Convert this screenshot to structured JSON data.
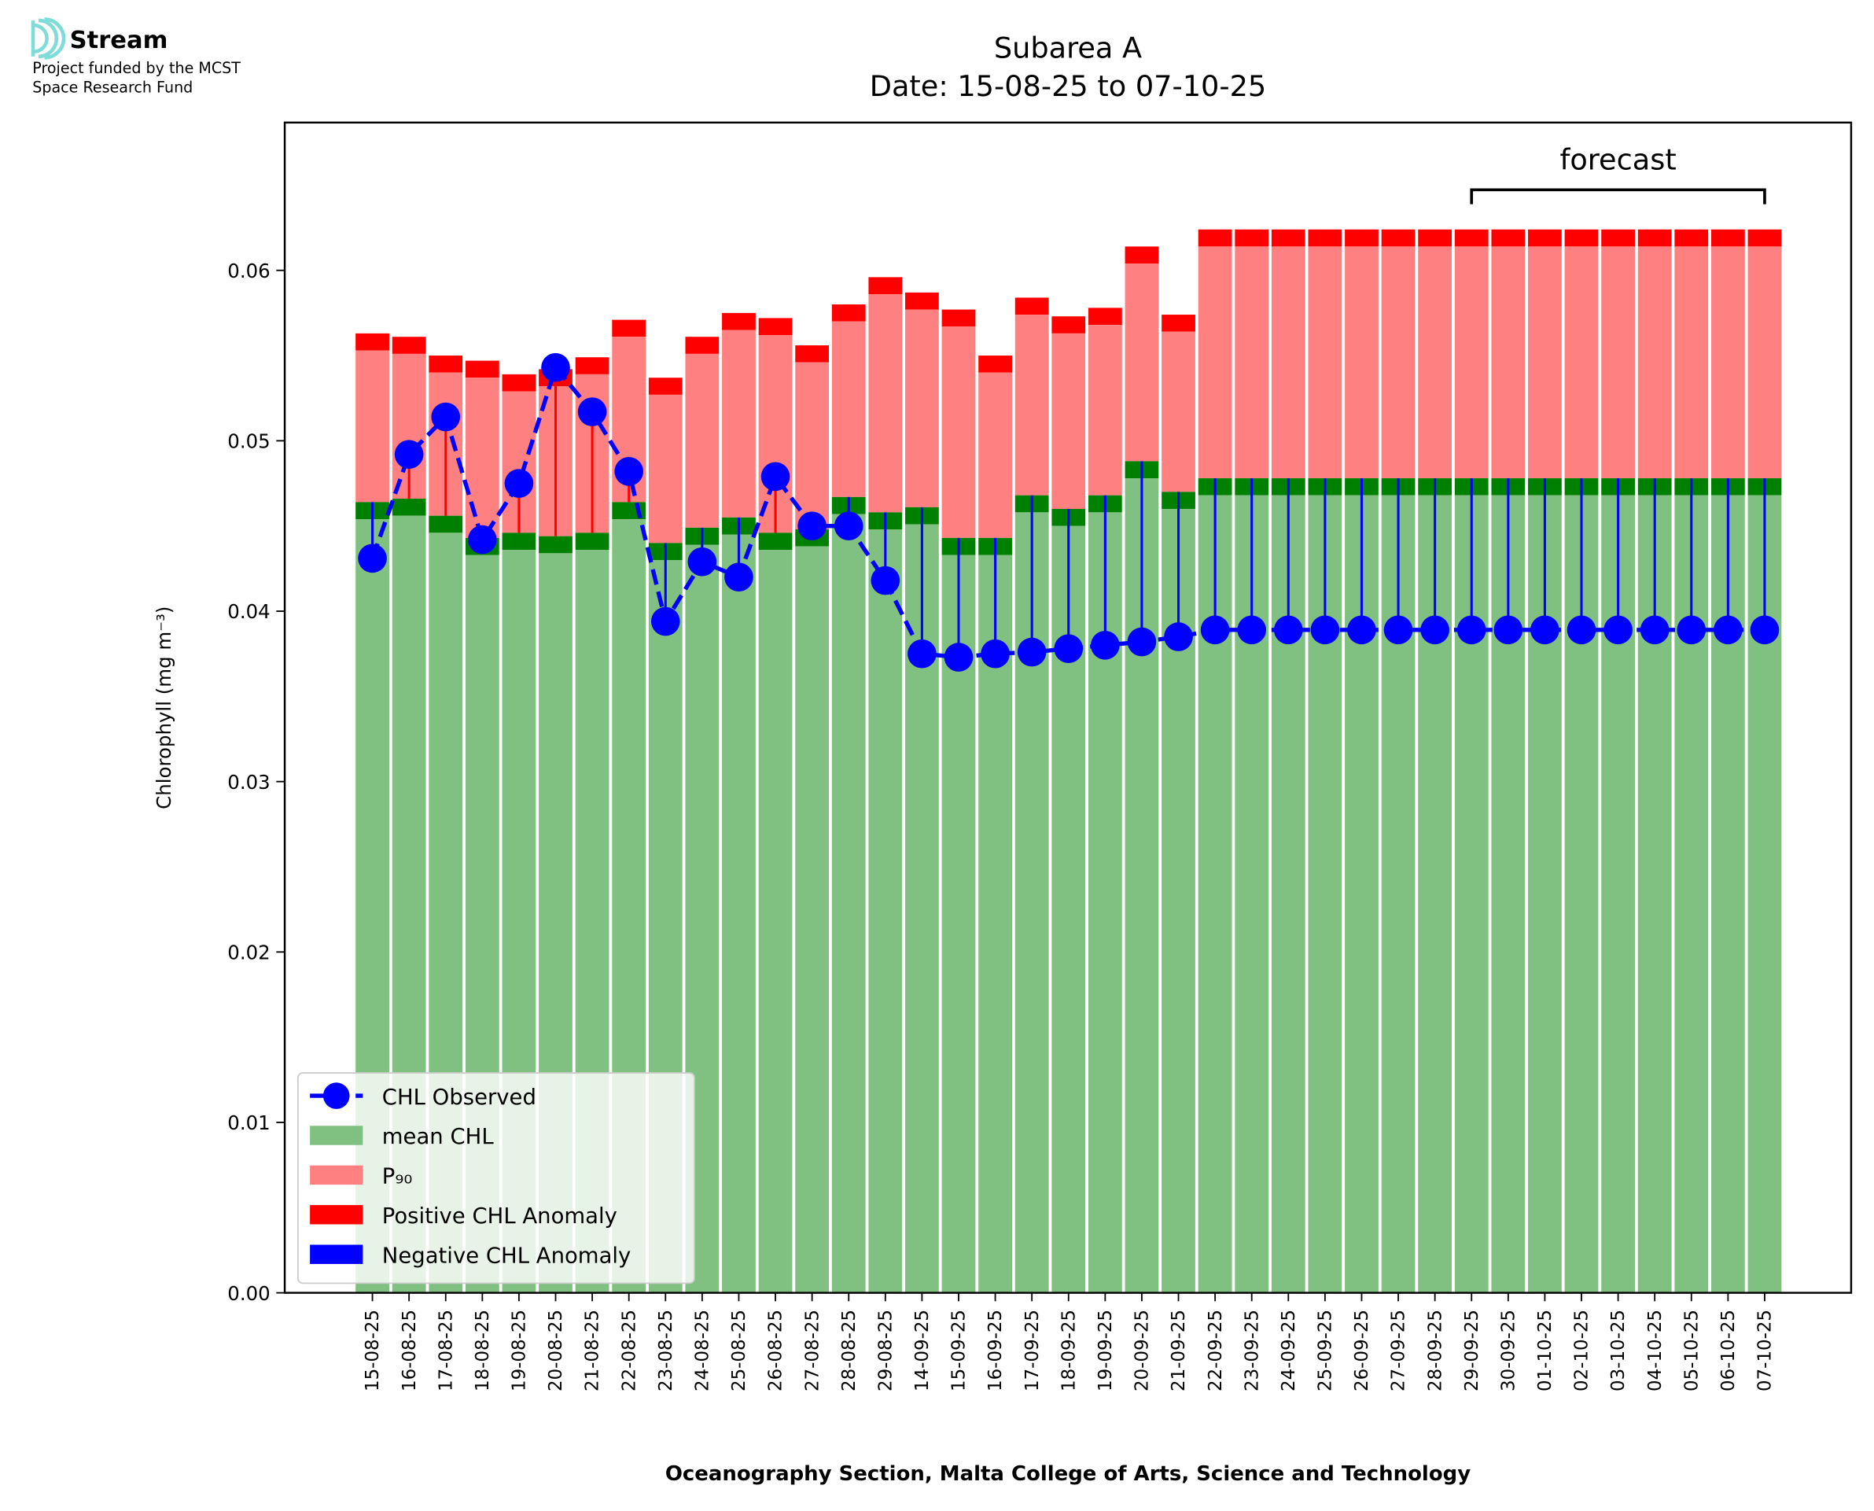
{
  "logo": {
    "name": "Stream",
    "line1": "Project funded by the MCST",
    "line2": "Space Research Fund",
    "color": "#7fdcd6"
  },
  "chart_data": {
    "type": "bar",
    "title": "Subarea A",
    "subtitle": "Date: 15-08-25 to 07-10-25",
    "xlabel": "Oceanography Section, Malta College of Arts, Science and Technology",
    "ylabel": "Chlorophyll (mg m⁻³)",
    "ylim": [
      0,
      0.0685
    ],
    "yticks": [
      "0.00",
      "0.01",
      "0.02",
      "0.03",
      "0.04",
      "0.05",
      "0.06"
    ],
    "grid": false,
    "legend_placement": "lower-left",
    "annotation": {
      "text": "forecast",
      "from": "29-09-25",
      "to": "07-10-25"
    },
    "colors": {
      "mean": "#80c080",
      "mean_band": "#008000",
      "p90": "#ff8080",
      "p90_band": "#ff0000",
      "observed": "#0000ff",
      "negative": "#0000ff",
      "positive": "#ff0000"
    },
    "legend": [
      "CHL Observed",
      "mean CHL",
      "P₉₀",
      "Positive CHL Anomaly",
      "Negative CHL Anomaly"
    ],
    "categories": [
      "15-08-25",
      "16-08-25",
      "17-08-25",
      "18-08-25",
      "19-08-25",
      "20-08-25",
      "21-08-25",
      "22-08-25",
      "23-08-25",
      "24-08-25",
      "25-08-25",
      "26-08-25",
      "27-08-25",
      "28-08-25",
      "29-08-25",
      "14-09-25",
      "15-09-25",
      "16-09-25",
      "17-09-25",
      "18-09-25",
      "19-09-25",
      "20-09-25",
      "21-09-25",
      "22-09-25",
      "23-09-25",
      "24-09-25",
      "25-09-25",
      "26-09-25",
      "27-09-25",
      "28-09-25",
      "29-09-25",
      "30-09-25",
      "01-10-25",
      "02-10-25",
      "03-10-25",
      "04-10-25",
      "05-10-25",
      "06-10-25",
      "07-10-25"
    ],
    "series": [
      {
        "name": "mean CHL",
        "values": [
          0.0464,
          0.0466,
          0.0456,
          0.0443,
          0.0446,
          0.0444,
          0.0446,
          0.0464,
          0.044,
          0.0449,
          0.0455,
          0.0446,
          0.0448,
          0.0467,
          0.0458,
          0.0461,
          0.0443,
          0.0443,
          0.0468,
          0.046,
          0.0468,
          0.0488,
          0.047,
          0.0478,
          0.0478,
          0.0478,
          0.0478,
          0.0478,
          0.0478,
          0.0478,
          0.0478,
          0.0478,
          0.0478,
          0.0478,
          0.0478,
          0.0478,
          0.0478,
          0.0478,
          0.0478
        ]
      },
      {
        "name": "P₉₀",
        "values": [
          0.0553,
          0.0551,
          0.054,
          0.0537,
          0.0529,
          0.0532,
          0.0539,
          0.0561,
          0.0527,
          0.0551,
          0.0565,
          0.0562,
          0.0546,
          0.057,
          0.0586,
          0.0577,
          0.0567,
          0.054,
          0.0574,
          0.0563,
          0.0568,
          0.0604,
          0.0564,
          0.0614,
          0.0614,
          0.0614,
          0.0614,
          0.0614,
          0.0614,
          0.0614,
          0.0614,
          0.0614,
          0.0614,
          0.0614,
          0.0614,
          0.0614,
          0.0614,
          0.0614,
          0.0614
        ]
      },
      {
        "name": "CHL Observed",
        "values": [
          0.0431,
          0.0492,
          0.0514,
          0.0442,
          0.0475,
          0.0543,
          0.0517,
          0.0482,
          0.0394,
          0.0429,
          0.042,
          0.0479,
          0.045,
          0.045,
          0.0418,
          0.0375,
          0.0373,
          0.0375,
          0.0376,
          0.0378,
          0.038,
          0.0382,
          0.0385,
          0.0389,
          0.0389,
          0.0389,
          0.0389,
          0.0389,
          0.0389,
          0.0389,
          0.0389,
          0.0389,
          0.0389,
          0.0389,
          0.0389,
          0.0389,
          0.0389,
          0.0389,
          0.0389
        ]
      }
    ]
  }
}
